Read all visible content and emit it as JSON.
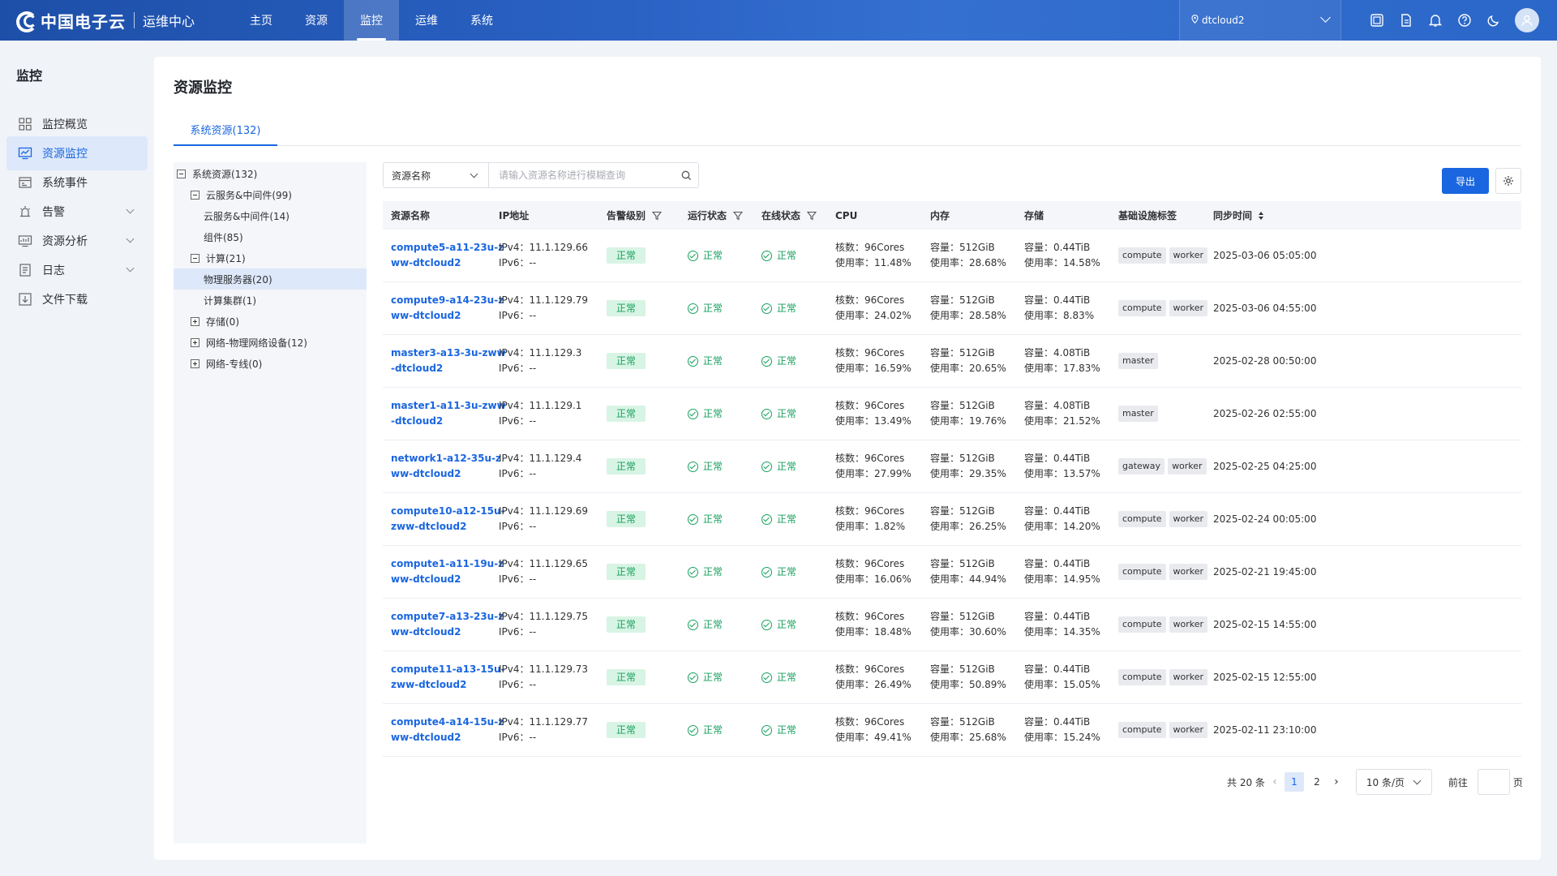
{
  "brand": {
    "name": "中国电子云",
    "subtitle": "运维中心"
  },
  "nav": [
    {
      "label": "主页",
      "active": false
    },
    {
      "label": "资源",
      "active": false
    },
    {
      "label": "监控",
      "active": true
    },
    {
      "label": "运维",
      "active": false
    },
    {
      "label": "系统",
      "active": false
    }
  ],
  "region": {
    "value": "dtcloud2"
  },
  "topbar_icons": [
    "screen-icon",
    "document-icon",
    "bell-icon",
    "help-icon",
    "moon-icon"
  ],
  "sidebar": {
    "title": "监控",
    "items": [
      {
        "label": "监控概览",
        "icon": "grid-icon",
        "active": false,
        "expandable": false
      },
      {
        "label": "资源监控",
        "icon": "monitor-chart-icon",
        "active": true,
        "expandable": false
      },
      {
        "label": "系统事件",
        "icon": "event-icon",
        "active": false,
        "expandable": false
      },
      {
        "label": "告警",
        "icon": "alarm-icon",
        "active": false,
        "expandable": true
      },
      {
        "label": "资源分析",
        "icon": "analysis-icon",
        "active": false,
        "expandable": true
      },
      {
        "label": "日志",
        "icon": "log-icon",
        "active": false,
        "expandable": true
      },
      {
        "label": "文件下载",
        "icon": "download-icon",
        "active": false,
        "expandable": false
      }
    ]
  },
  "page": {
    "title": "资源监控",
    "tab": "系统资源(132)"
  },
  "tree": [
    {
      "label": "系统资源(132)",
      "level": 0,
      "toggle": "minus",
      "selected": false
    },
    {
      "label": "云服务&中间件(99)",
      "level": 1,
      "toggle": "minus",
      "selected": false
    },
    {
      "label": "云服务&中间件(14)",
      "level": 2,
      "toggle": null,
      "selected": false
    },
    {
      "label": "组件(85)",
      "level": 2,
      "toggle": null,
      "selected": false
    },
    {
      "label": "计算(21)",
      "level": 1,
      "toggle": "minus",
      "selected": false
    },
    {
      "label": "物理服务器(20)",
      "level": 2,
      "toggle": null,
      "selected": true
    },
    {
      "label": "计算集群(1)",
      "level": 2,
      "toggle": null,
      "selected": false
    },
    {
      "label": "存储(0)",
      "level": 1,
      "toggle": "plus",
      "selected": false
    },
    {
      "label": "网络-物理网络设备(12)",
      "level": 1,
      "toggle": "plus",
      "selected": false
    },
    {
      "label": "网络-专线(0)",
      "level": 1,
      "toggle": "plus",
      "selected": false
    }
  ],
  "search": {
    "field": "资源名称",
    "placeholder": "请输入资源名称进行模糊查询",
    "value": ""
  },
  "toolbar": {
    "export_label": "导出"
  },
  "table": {
    "columns": [
      {
        "label": "资源名称",
        "filter": false,
        "sort": false
      },
      {
        "label": "IP地址",
        "filter": false,
        "sort": false
      },
      {
        "label": "告警级别",
        "filter": true,
        "sort": false
      },
      {
        "label": "运行状态",
        "filter": true,
        "sort": false
      },
      {
        "label": "在线状态",
        "filter": true,
        "sort": false
      },
      {
        "label": "CPU",
        "filter": false,
        "sort": false
      },
      {
        "label": "内存",
        "filter": false,
        "sort": false
      },
      {
        "label": "存储",
        "filter": false,
        "sort": false
      },
      {
        "label": "基础设施标签",
        "filter": false,
        "sort": false
      },
      {
        "label": "同步时间",
        "filter": false,
        "sort": true
      }
    ],
    "rows": [
      {
        "name": "compute5-a11-23u-zww-dtcloud2",
        "ipv4": "IPv4：11.1.129.66",
        "ipv6": "IPv6：--",
        "alarm": "正常",
        "run": "正常",
        "online": "正常",
        "cpu_cores": "核数：96Cores",
        "cpu_usage": "使用率：11.48%",
        "mem_cap": "容量：512GiB",
        "mem_usage": "使用率：28.68%",
        "sto_cap": "容量：0.44TiB",
        "sto_usage": "使用率：14.58%",
        "tags": [
          "compute",
          "worker"
        ],
        "time": "2025-03-06 05:05:00"
      },
      {
        "name": "compute9-a14-23u-zww-dtcloud2",
        "ipv4": "IPv4：11.1.129.79",
        "ipv6": "IPv6：--",
        "alarm": "正常",
        "run": "正常",
        "online": "正常",
        "cpu_cores": "核数：96Cores",
        "cpu_usage": "使用率：24.02%",
        "mem_cap": "容量：512GiB",
        "mem_usage": "使用率：28.58%",
        "sto_cap": "容量：0.44TiB",
        "sto_usage": "使用率：8.83%",
        "tags": [
          "compute",
          "worker"
        ],
        "time": "2025-03-06 04:55:00"
      },
      {
        "name": "master3-a13-3u-zww-dtcloud2",
        "ipv4": "IPv4：11.1.129.3",
        "ipv6": "IPv6：--",
        "alarm": "正常",
        "run": "正常",
        "online": "正常",
        "cpu_cores": "核数：96Cores",
        "cpu_usage": "使用率：16.59%",
        "mem_cap": "容量：512GiB",
        "mem_usage": "使用率：20.65%",
        "sto_cap": "容量：4.08TiB",
        "sto_usage": "使用率：17.83%",
        "tags": [
          "master"
        ],
        "time": "2025-02-28 00:50:00"
      },
      {
        "name": "master1-a11-3u-zww-dtcloud2",
        "ipv4": "IPv4：11.1.129.1",
        "ipv6": "IPv6：--",
        "alarm": "正常",
        "run": "正常",
        "online": "正常",
        "cpu_cores": "核数：96Cores",
        "cpu_usage": "使用率：13.49%",
        "mem_cap": "容量：512GiB",
        "mem_usage": "使用率：19.76%",
        "sto_cap": "容量：4.08TiB",
        "sto_usage": "使用率：21.52%",
        "tags": [
          "master"
        ],
        "time": "2025-02-26 02:55:00"
      },
      {
        "name": "network1-a12-35u-zww-dtcloud2",
        "ipv4": "IPv4：11.1.129.4",
        "ipv6": "IPv6：--",
        "alarm": "正常",
        "run": "正常",
        "online": "正常",
        "cpu_cores": "核数：96Cores",
        "cpu_usage": "使用率：27.99%",
        "mem_cap": "容量：512GiB",
        "mem_usage": "使用率：29.35%",
        "sto_cap": "容量：0.44TiB",
        "sto_usage": "使用率：13.57%",
        "tags": [
          "gateway",
          "worker"
        ],
        "time": "2025-02-25 04:25:00"
      },
      {
        "name": "compute10-a12-15u-zww-dtcloud2",
        "ipv4": "IPv4：11.1.129.69",
        "ipv6": "IPv6：--",
        "alarm": "正常",
        "run": "正常",
        "online": "正常",
        "cpu_cores": "核数：96Cores",
        "cpu_usage": "使用率：1.82%",
        "mem_cap": "容量：512GiB",
        "mem_usage": "使用率：26.25%",
        "sto_cap": "容量：0.44TiB",
        "sto_usage": "使用率：14.20%",
        "tags": [
          "compute",
          "worker"
        ],
        "time": "2025-02-24 00:05:00"
      },
      {
        "name": "compute1-a11-19u-zww-dtcloud2",
        "ipv4": "IPv4：11.1.129.65",
        "ipv6": "IPv6：--",
        "alarm": "正常",
        "run": "正常",
        "online": "正常",
        "cpu_cores": "核数：96Cores",
        "cpu_usage": "使用率：16.06%",
        "mem_cap": "容量：512GiB",
        "mem_usage": "使用率：44.94%",
        "sto_cap": "容量：0.44TiB",
        "sto_usage": "使用率：14.95%",
        "tags": [
          "compute",
          "worker"
        ],
        "time": "2025-02-21 19:45:00"
      },
      {
        "name": "compute7-a13-23u-zww-dtcloud2",
        "ipv4": "IPv4：11.1.129.75",
        "ipv6": "IPv6：--",
        "alarm": "正常",
        "run": "正常",
        "online": "正常",
        "cpu_cores": "核数：96Cores",
        "cpu_usage": "使用率：18.48%",
        "mem_cap": "容量：512GiB",
        "mem_usage": "使用率：30.60%",
        "sto_cap": "容量：0.44TiB",
        "sto_usage": "使用率：14.35%",
        "tags": [
          "compute",
          "worker"
        ],
        "time": "2025-02-15 14:55:00"
      },
      {
        "name": "compute11-a13-15u-zww-dtcloud2",
        "ipv4": "IPv4：11.1.129.73",
        "ipv6": "IPv6：--",
        "alarm": "正常",
        "run": "正常",
        "online": "正常",
        "cpu_cores": "核数：96Cores",
        "cpu_usage": "使用率：26.49%",
        "mem_cap": "容量：512GiB",
        "mem_usage": "使用率：50.89%",
        "sto_cap": "容量：0.44TiB",
        "sto_usage": "使用率：15.05%",
        "tags": [
          "compute",
          "worker"
        ],
        "time": "2025-02-15 12:55:00"
      },
      {
        "name": "compute4-a14-15u-zww-dtcloud2",
        "ipv4": "IPv4：11.1.129.77",
        "ipv6": "IPv6：--",
        "alarm": "正常",
        "run": "正常",
        "online": "正常",
        "cpu_cores": "核数：96Cores",
        "cpu_usage": "使用率：49.41%",
        "mem_cap": "容量：512GiB",
        "mem_usage": "使用率：25.68%",
        "sto_cap": "容量：0.44TiB",
        "sto_usage": "使用率：15.24%",
        "tags": [
          "compute",
          "worker"
        ],
        "time": "2025-02-11 23:10:00"
      }
    ]
  },
  "pagination": {
    "total": "共 20 条",
    "prev": "‹",
    "pages": [
      "1",
      "2"
    ],
    "current": "1",
    "next": "›",
    "page_size": "10 条/页",
    "goto_label": "前往",
    "goto_value": "",
    "page_suffix": "页"
  },
  "colors": {
    "primary": "#1a66e0",
    "success": "#17a05d",
    "topbar": "#2a62c4"
  }
}
